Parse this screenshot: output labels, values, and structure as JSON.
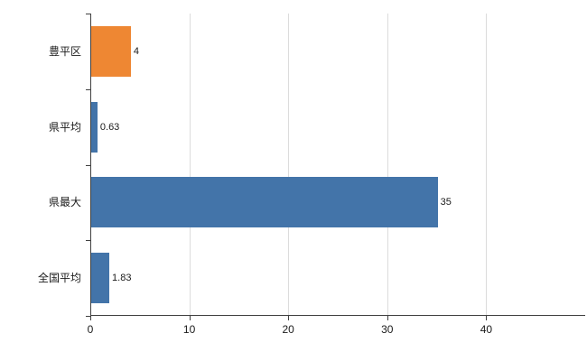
{
  "chart_data": {
    "type": "bar",
    "orientation": "horizontal",
    "title": "",
    "xlabel": "",
    "ylabel": "",
    "categories": [
      "豊平区",
      "県平均",
      "県最大",
      "全国平均"
    ],
    "values": [
      4,
      0.63,
      35,
      1.83
    ],
    "value_labels": [
      "4",
      "0.63",
      "35",
      "1.83"
    ],
    "bar_colors": [
      "#EE8733",
      "#4374A9",
      "#4374A9",
      "#4374A9"
    ],
    "xlim": [
      0,
      50
    ],
    "xticks": [
      0,
      10,
      20,
      30,
      40
    ],
    "xtick_labels": [
      "0",
      "10",
      "20",
      "30",
      "40"
    ],
    "grid": true,
    "legend_position": "none"
  },
  "style": {
    "background": "#ffffff",
    "axis_color": "#404040",
    "grid_color": "#dcdcdc",
    "text_color": "#1a1a1a",
    "accent_orange": "#EE8733",
    "accent_blue": "#4374A9"
  }
}
